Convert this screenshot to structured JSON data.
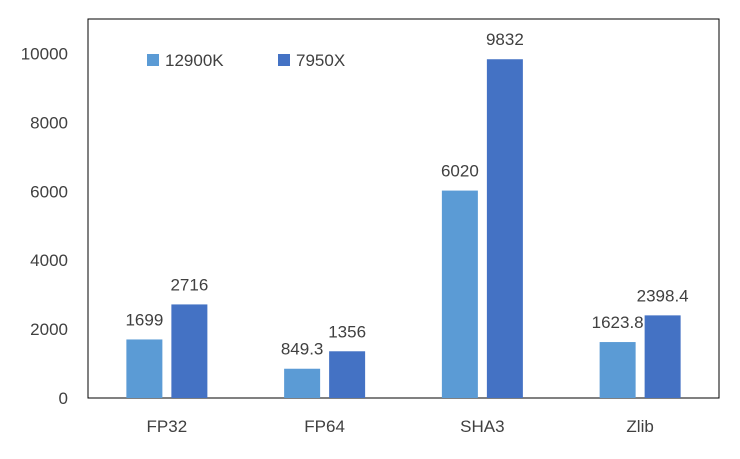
{
  "chart_data": {
    "type": "bar",
    "categories": [
      "FP32",
      "FP64",
      "SHA3",
      "Zlib"
    ],
    "series": [
      {
        "name": "12900K",
        "color": "#5b9bd5",
        "values": [
          1699,
          849.3,
          6020,
          1623.8
        ],
        "labels": [
          "1699",
          "849.3",
          "6020",
          "1623.8"
        ]
      },
      {
        "name": "7950X",
        "color": "#4472c4",
        "values": [
          2716,
          1356,
          9832,
          2398.4
        ],
        "labels": [
          "2716",
          "1356",
          "9832",
          "2398.4"
        ]
      }
    ],
    "title": "",
    "xlabel": "",
    "ylabel": "",
    "ylim": [
      0,
      11000
    ],
    "yticks": [
      0,
      2000,
      4000,
      6000,
      8000,
      10000
    ],
    "ytick_labels": [
      "0",
      "2000",
      "4000",
      "6000",
      "8000",
      "10000"
    ],
    "grid": false,
    "legend_position": "top-left inside plot"
  }
}
